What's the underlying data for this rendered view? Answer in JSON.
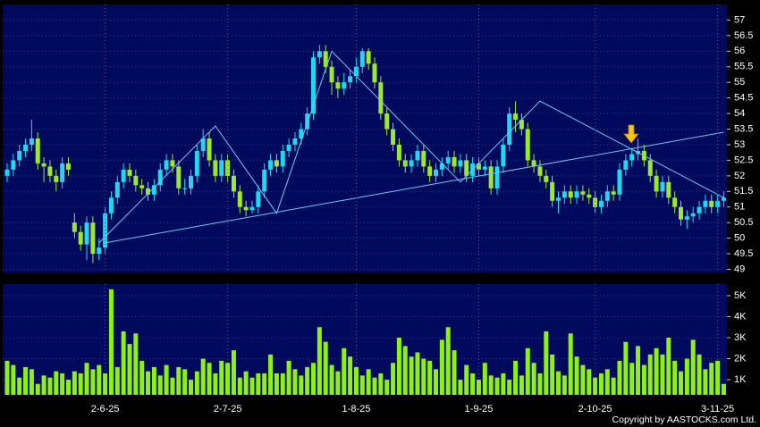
{
  "chart_data": [
    {
      "type": "candlestick",
      "up_color": "#22d6f2",
      "down_color": "#9be82c",
      "open": [
        52.0,
        52.2,
        52.5,
        52.8,
        53.0,
        53.2,
        52.4,
        52.3,
        52.0,
        51.8,
        52.4,
        50.5,
        50.2,
        49.8,
        50.5,
        49.5,
        49.7,
        50.8,
        51.3,
        51.8,
        52.2,
        52.0,
        51.7,
        51.6,
        51.4,
        51.7,
        52.2,
        52.5,
        52.3,
        51.6,
        51.6,
        52.0,
        52.8,
        53.2,
        52.5,
        52.0,
        52.5,
        52.0,
        51.5,
        51.0,
        50.9,
        51.0,
        51.5,
        52.2,
        52.5,
        52.3,
        52.8,
        53.0,
        53.2,
        53.5,
        54.0,
        55.8,
        56.0,
        55.5,
        55.0,
        54.8,
        55.0,
        55.2,
        55.5,
        56.0,
        55.6,
        55.0,
        54.0,
        53.5,
        53.0,
        52.5,
        52.3,
        52.5,
        52.8,
        52.3,
        52.0,
        52.2,
        52.4,
        52.6,
        52.3,
        52.5,
        52.0,
        52.4,
        52.2,
        52.3,
        51.6,
        52.3,
        53.0,
        54.0,
        53.8,
        53.5,
        52.5,
        52.3,
        52.0,
        51.8,
        51.2,
        51.3,
        51.5,
        51.3,
        51.5,
        51.4,
        51.3,
        51.0,
        51.2,
        51.5,
        51.4,
        52.2,
        52.5,
        52.7,
        52.8,
        52.5,
        52.0,
        51.5,
        51.8,
        51.3,
        51.0,
        50.6,
        50.7,
        50.8,
        51.0,
        51.2,
        51.0,
        51.2
      ],
      "high": [
        52.4,
        52.7,
        53.0,
        53.2,
        53.8,
        53.4,
        52.6,
        52.5,
        52.2,
        52.6,
        52.6,
        50.8,
        50.4,
        50.7,
        50.7,
        50.0,
        51.0,
        51.5,
        52.0,
        52.4,
        52.4,
        52.2,
        51.9,
        51.8,
        51.9,
        52.4,
        52.7,
        52.7,
        52.5,
        51.9,
        52.2,
        53.0,
        53.5,
        53.4,
        52.7,
        52.7,
        52.7,
        52.2,
        51.7,
        51.2,
        51.2,
        51.7,
        52.4,
        52.7,
        52.7,
        53.0,
        53.2,
        53.4,
        53.7,
        54.2,
        56.0,
        56.2,
        56.2,
        55.7,
        55.2,
        55.3,
        55.4,
        55.8,
        56.1,
        56.1,
        55.8,
        55.2,
        54.2,
        53.7,
        53.2,
        52.7,
        52.7,
        53.0,
        53.0,
        52.5,
        52.4,
        52.6,
        52.8,
        52.8,
        52.7,
        52.7,
        52.6,
        52.6,
        52.5,
        52.5,
        52.5,
        53.2,
        54.2,
        54.4,
        54.0,
        53.7,
        52.7,
        52.5,
        52.2,
        52.0,
        51.5,
        51.7,
        51.7,
        51.7,
        51.7,
        51.6,
        51.5,
        51.4,
        51.7,
        51.7,
        52.4,
        52.7,
        52.9,
        53.2,
        53.0,
        52.7,
        52.2,
        52.0,
        52.0,
        51.5,
        51.2,
        50.9,
        51.0,
        51.2,
        51.4,
        51.4,
        51.4,
        51.5
      ],
      "low": [
        51.8,
        52.0,
        52.3,
        52.6,
        52.8,
        52.2,
        51.8,
        51.8,
        51.5,
        51.6,
        52.0,
        50.0,
        49.6,
        49.3,
        49.2,
        49.3,
        49.5,
        50.6,
        51.1,
        51.6,
        51.8,
        51.5,
        51.4,
        51.2,
        51.2,
        51.5,
        52.0,
        52.1,
        51.4,
        51.4,
        51.4,
        51.8,
        52.6,
        52.3,
        51.8,
        51.8,
        51.8,
        51.3,
        50.8,
        50.7,
        50.8,
        50.8,
        51.3,
        52.0,
        52.1,
        52.1,
        52.6,
        52.8,
        53.0,
        53.3,
        53.8,
        55.6,
        55.3,
        54.6,
        54.5,
        54.6,
        54.8,
        55.0,
        55.3,
        55.4,
        54.8,
        53.8,
        53.3,
        52.8,
        52.3,
        52.1,
        52.1,
        52.3,
        52.1,
        51.8,
        51.8,
        52.0,
        52.2,
        52.1,
        52.1,
        51.8,
        51.8,
        52.0,
        52.0,
        51.4,
        51.4,
        52.1,
        52.8,
        53.4,
        53.3,
        52.3,
        52.1,
        51.8,
        51.6,
        51.0,
        50.8,
        51.1,
        51.1,
        51.1,
        51.2,
        51.1,
        50.8,
        50.8,
        51.0,
        51.2,
        51.2,
        52.0,
        52.3,
        52.5,
        52.3,
        51.8,
        51.3,
        51.3,
        51.1,
        50.8,
        50.4,
        50.3,
        50.5,
        50.6,
        50.8,
        50.8,
        50.8,
        51.0
      ],
      "close": [
        52.2,
        52.5,
        52.8,
        53.0,
        53.2,
        52.4,
        52.3,
        52.0,
        51.8,
        52.4,
        52.2,
        50.2,
        49.8,
        50.5,
        49.5,
        49.7,
        50.8,
        51.3,
        51.8,
        52.2,
        52.0,
        51.7,
        51.6,
        51.4,
        51.7,
        52.2,
        52.5,
        52.3,
        51.6,
        51.6,
        52.0,
        52.8,
        53.2,
        52.5,
        52.0,
        52.5,
        52.0,
        51.5,
        51.0,
        50.9,
        51.0,
        51.5,
        52.2,
        52.5,
        52.3,
        52.8,
        53.0,
        53.2,
        53.5,
        54.0,
        55.8,
        56.0,
        55.5,
        55.0,
        54.8,
        55.0,
        55.2,
        55.5,
        56.0,
        55.6,
        55.0,
        54.0,
        53.5,
        53.0,
        52.5,
        52.3,
        52.5,
        52.8,
        52.3,
        52.0,
        52.2,
        52.4,
        52.6,
        52.3,
        52.5,
        52.0,
        52.4,
        52.2,
        52.3,
        51.6,
        52.3,
        53.0,
        54.0,
        53.8,
        53.5,
        52.5,
        52.3,
        52.0,
        51.8,
        51.2,
        51.3,
        51.5,
        51.3,
        51.5,
        51.4,
        51.3,
        51.0,
        51.2,
        51.5,
        51.4,
        52.2,
        52.5,
        52.7,
        52.8,
        52.5,
        52.0,
        51.5,
        51.8,
        51.3,
        51.0,
        50.6,
        50.7,
        50.8,
        51.0,
        51.2,
        51.0,
        51.2,
        51.3
      ],
      "lines": [
        {
          "color": "#6ec8f2",
          "points": [
            [
              15,
              49.85
            ],
            [
              34,
              53.6
            ],
            [
              44,
              50.8
            ],
            [
              53,
              56.0
            ],
            [
              74,
              51.8
            ],
            [
              87,
              54.4
            ],
            [
              117,
              51.3
            ]
          ]
        },
        {
          "color": "#6ec8f2",
          "points": [
            [
              16,
              49.85
            ],
            [
              117,
              53.4
            ]
          ]
        }
      ],
      "ylim": [
        48.9,
        57.5
      ],
      "yticks": [
        49,
        49.5,
        50,
        50.5,
        51,
        51.5,
        52,
        52.5,
        53,
        53.5,
        54,
        54.5,
        55,
        55.5,
        56,
        56.5,
        57
      ],
      "grid": true
    },
    {
      "type": "bar",
      "color": "#8ef014",
      "categories": [
        null,
        null,
        null,
        null,
        null,
        null,
        null,
        null,
        null,
        null,
        null,
        null,
        null,
        null,
        null,
        null,
        "2-6-25",
        null,
        null,
        null,
        null,
        null,
        null,
        null,
        null,
        null,
        null,
        null,
        null,
        null,
        null,
        null,
        null,
        null,
        null,
        null,
        "2-7-25",
        null,
        null,
        null,
        null,
        null,
        null,
        null,
        null,
        null,
        null,
        null,
        null,
        null,
        null,
        null,
        null,
        null,
        null,
        null,
        null,
        "1-8-25",
        null,
        null,
        null,
        null,
        null,
        null,
        null,
        null,
        null,
        null,
        null,
        null,
        null,
        null,
        null,
        null,
        null,
        null,
        null,
        "1-9-25",
        null,
        null,
        null,
        null,
        null,
        null,
        null,
        null,
        null,
        null,
        null,
        null,
        null,
        null,
        null,
        null,
        null,
        null,
        "2-10-25",
        null,
        null,
        null,
        null,
        null,
        null,
        null,
        null,
        null,
        null,
        null,
        null,
        null,
        null,
        null,
        null,
        null,
        null,
        null,
        "3-11-25",
        null
      ],
      "values": [
        1900,
        1700,
        1100,
        1600,
        1500,
        800,
        1200,
        1100,
        1400,
        1300,
        1000,
        1400,
        1300,
        1800,
        1500,
        1700,
        1300,
        5300,
        1600,
        3300,
        2700,
        3200,
        1900,
        1400,
        1600,
        1200,
        1700,
        1100,
        1600,
        1500,
        1000,
        1400,
        2000,
        1800,
        1300,
        1900,
        1800,
        2400,
        1100,
        1400,
        1100,
        1300,
        1300,
        2200,
        1300,
        1300,
        1900,
        1500,
        1200,
        1600,
        1800,
        3500,
        2800,
        1700,
        1400,
        2500,
        2100,
        1600,
        1200,
        1500,
        1100,
        1300,
        1000,
        1800,
        3000,
        2600,
        2100,
        2300,
        2000,
        1900,
        1500,
        2900,
        3500,
        2400,
        1000,
        1700,
        1300,
        1000,
        1800,
        1200,
        1100,
        1300,
        1000,
        1900,
        1200,
        2500,
        1800,
        1300,
        3300,
        2200,
        1400,
        1200,
        3200,
        2100,
        1700,
        1500,
        1100,
        1300,
        1500,
        1100,
        1900,
        2800,
        1800,
        2600,
        1700,
        2200,
        2500,
        2200,
        3000,
        1900,
        1400,
        2000,
        2900,
        2200,
        1500,
        1800,
        1900,
        800
      ],
      "ylim": [
        280,
        5550
      ],
      "yticks": [
        {
          "value": 1000,
          "label": "1K"
        },
        {
          "value": 2000,
          "label": "2K"
        },
        {
          "value": 3000,
          "label": "3K"
        },
        {
          "value": 4000,
          "label": "4K"
        },
        {
          "value": 5000,
          "label": "5K"
        }
      ],
      "grid": true
    }
  ],
  "copyright": "Copyright by AASTOCKS.com Ltd."
}
